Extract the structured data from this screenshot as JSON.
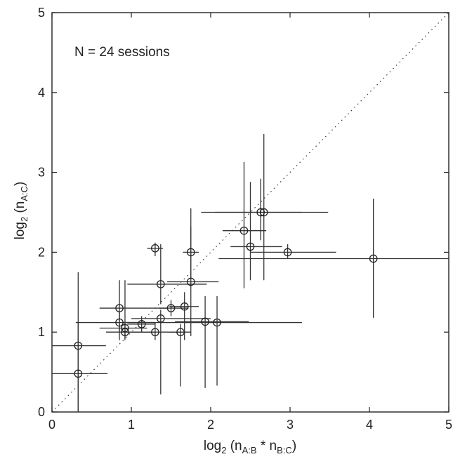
{
  "chart_data": {
    "type": "scatter",
    "title": "",
    "annotation": "N = 24 sessions",
    "xlabel": {
      "prefix": "log",
      "sub1": "2",
      "mid": " (n",
      "sub2": "A:B",
      "mid2": " * n",
      "sub3": "B:C",
      "suffix": ")"
    },
    "ylabel": {
      "prefix": "log",
      "sub1": "2",
      "mid": " (n",
      "sub2": "A:C",
      "suffix": ")"
    },
    "xlim": [
      0,
      5
    ],
    "ylim": [
      0,
      5
    ],
    "xticks": [
      0,
      1,
      2,
      3,
      4,
      5
    ],
    "yticks": [
      0,
      1,
      2,
      3,
      4,
      5
    ],
    "grid": false,
    "reference_line": {
      "style": "dotted",
      "from": [
        0,
        0
      ],
      "to": [
        5,
        5
      ]
    },
    "points": [
      {
        "x": 0.33,
        "y": 0.83,
        "xerr": [
          0.0,
          0.68
        ],
        "yerr": [
          0.0,
          1.75
        ]
      },
      {
        "x": 0.33,
        "y": 0.48,
        "xerr": [
          0.0,
          0.7
        ],
        "yerr": [
          0.0,
          1.13
        ]
      },
      {
        "x": 0.85,
        "y": 1.3,
        "xerr": [
          0.6,
          1.45
        ],
        "yerr": [
          0.9,
          1.65
        ]
      },
      {
        "x": 0.85,
        "y": 1.12,
        "xerr": [
          0.3,
          1.3
        ],
        "yerr": [
          1.0,
          1.25
        ]
      },
      {
        "x": 0.92,
        "y": 1.0,
        "xerr": [
          0.68,
          1.3
        ],
        "yerr": [
          0.92,
          1.1
        ]
      },
      {
        "x": 0.92,
        "y": 1.05,
        "xerr": [
          0.6,
          1.2
        ],
        "yerr": [
          0.9,
          1.65
        ]
      },
      {
        "x": 1.13,
        "y": 1.1,
        "xerr": [
          0.95,
          1.3
        ],
        "yerr": [
          1.0,
          1.2
        ]
      },
      {
        "x": 1.3,
        "y": 1.0,
        "xerr": [
          0.95,
          1.65
        ],
        "yerr": [
          0.9,
          1.12
        ]
      },
      {
        "x": 1.3,
        "y": 2.05,
        "xerr": [
          1.2,
          1.4
        ],
        "yerr": [
          1.95,
          2.12
        ]
      },
      {
        "x": 1.37,
        "y": 1.6,
        "xerr": [
          0.95,
          1.95
        ],
        "yerr": [
          1.35,
          2.1
        ]
      },
      {
        "x": 1.37,
        "y": 1.17,
        "xerr": [
          1.0,
          2.0
        ],
        "yerr": [
          0.22,
          1.28
        ]
      },
      {
        "x": 1.5,
        "y": 1.3,
        "xerr": [
          1.35,
          1.72
        ],
        "yerr": [
          1.2,
          1.4
        ]
      },
      {
        "x": 1.62,
        "y": 1.0,
        "xerr": [
          1.48,
          1.75
        ],
        "yerr": [
          0.32,
          1.1
        ]
      },
      {
        "x": 1.67,
        "y": 1.32,
        "xerr": [
          1.48,
          1.85
        ],
        "yerr": [
          0.9,
          1.5
        ]
      },
      {
        "x": 1.75,
        "y": 2.0,
        "xerr": [
          1.65,
          1.85
        ],
        "yerr": [
          1.68,
          2.32
        ]
      },
      {
        "x": 1.75,
        "y": 1.63,
        "xerr": [
          1.45,
          2.1
        ],
        "yerr": [
          0.95,
          2.55
        ]
      },
      {
        "x": 1.93,
        "y": 1.13,
        "xerr": [
          1.55,
          2.48
        ],
        "yerr": [
          0.3,
          1.45
        ]
      },
      {
        "x": 2.08,
        "y": 1.12,
        "xerr": [
          0.9,
          3.15
        ],
        "yerr": [
          0.33,
          1.45
        ]
      },
      {
        "x": 2.42,
        "y": 2.27,
        "xerr": [
          2.15,
          2.7
        ],
        "yerr": [
          1.55,
          3.13
        ]
      },
      {
        "x": 2.5,
        "y": 2.07,
        "xerr": [
          2.25,
          2.9
        ],
        "yerr": [
          1.65,
          2.88
        ]
      },
      {
        "x": 2.63,
        "y": 2.5,
        "xerr": [
          1.88,
          3.15
        ],
        "yerr": [
          2.15,
          2.92
        ]
      },
      {
        "x": 2.67,
        "y": 2.5,
        "xerr": [
          2.05,
          3.48
        ],
        "yerr": [
          1.65,
          3.48
        ]
      },
      {
        "x": 2.97,
        "y": 2.0,
        "xerr": [
          2.5,
          3.58
        ],
        "yerr": [
          1.92,
          2.1
        ]
      },
      {
        "x": 4.05,
        "y": 1.92,
        "xerr": [
          2.1,
          5.0
        ],
        "yerr": [
          1.18,
          2.67
        ]
      }
    ]
  }
}
